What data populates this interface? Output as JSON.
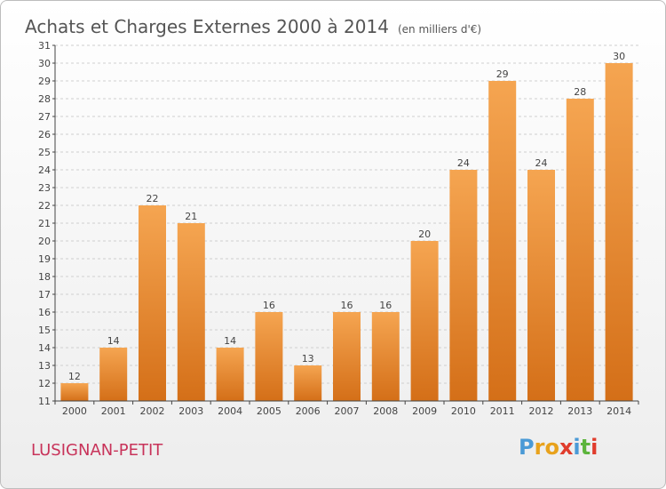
{
  "header": {
    "title": "Achats et Charges Externes 2000 à 2014",
    "unit": "(en milliers d'€)"
  },
  "footer": {
    "place": "LUSIGNAN-PETIT",
    "logo_text": "Proxiti",
    "logo_colors": [
      "#4a9ad6",
      "#e8a21c",
      "#e8a21c",
      "#e03c2c",
      "#4a9ad6",
      "#5cb43c",
      "#e03c2c"
    ]
  },
  "chart_data": {
    "type": "bar",
    "title": "Achats et Charges Externes 2000 à 2014",
    "subtitle": "(en milliers d'€)",
    "xlabel": "",
    "ylabel": "",
    "categories": [
      "2000",
      "2001",
      "2002",
      "2003",
      "2004",
      "2005",
      "2006",
      "2007",
      "2008",
      "2009",
      "2010",
      "2011",
      "2012",
      "2013",
      "2014"
    ],
    "values": [
      12,
      14,
      22,
      21,
      14,
      16,
      13,
      16,
      16,
      20,
      24,
      29,
      24,
      28,
      30
    ],
    "ylim": [
      11,
      31
    ],
    "yticks": [
      11,
      12,
      13,
      14,
      15,
      16,
      17,
      18,
      19,
      20,
      21,
      22,
      23,
      24,
      25,
      26,
      27,
      28,
      29,
      30,
      31
    ],
    "grid": "horizontal-dashed",
    "bar_color_top": "#f5a551",
    "bar_color_bottom": "#d46f18"
  }
}
